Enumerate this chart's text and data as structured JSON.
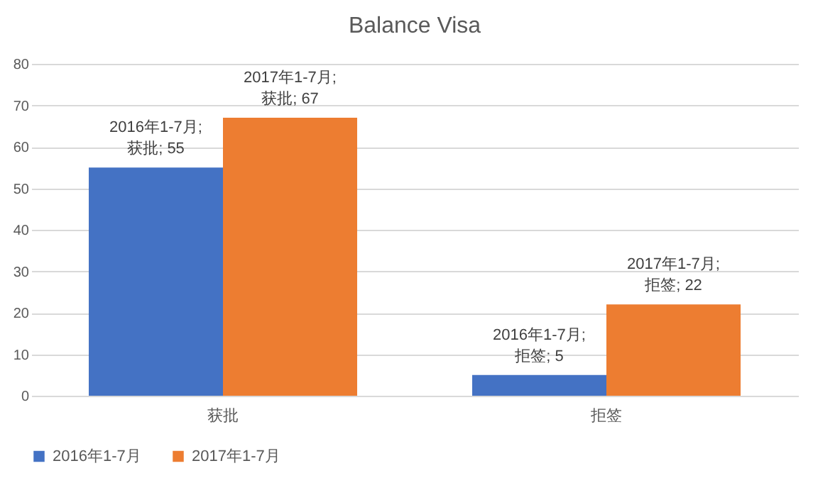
{
  "chart_data": {
    "type": "bar",
    "title": "Balance Visa",
    "categories": [
      "获批",
      "拒签"
    ],
    "series": [
      {
        "name": "2016年1-7月",
        "color": "#4472c4",
        "values": [
          55,
          5
        ],
        "value_labels": [
          "2016年1-7月; 获批; 55",
          "2016年1-7月; 拒签; 5"
        ]
      },
      {
        "name": "2017年1-7月",
        "color": "#ed7d31",
        "values": [
          67,
          22
        ],
        "value_labels": [
          "2017年1-7月; 获批; 67",
          "2017年1-7月; 拒签; 22"
        ]
      }
    ],
    "ylim": [
      0,
      80
    ],
    "yticks": [
      0,
      10,
      20,
      30,
      40,
      50,
      60,
      70,
      80
    ],
    "grid": "y",
    "legend": "bottom"
  }
}
